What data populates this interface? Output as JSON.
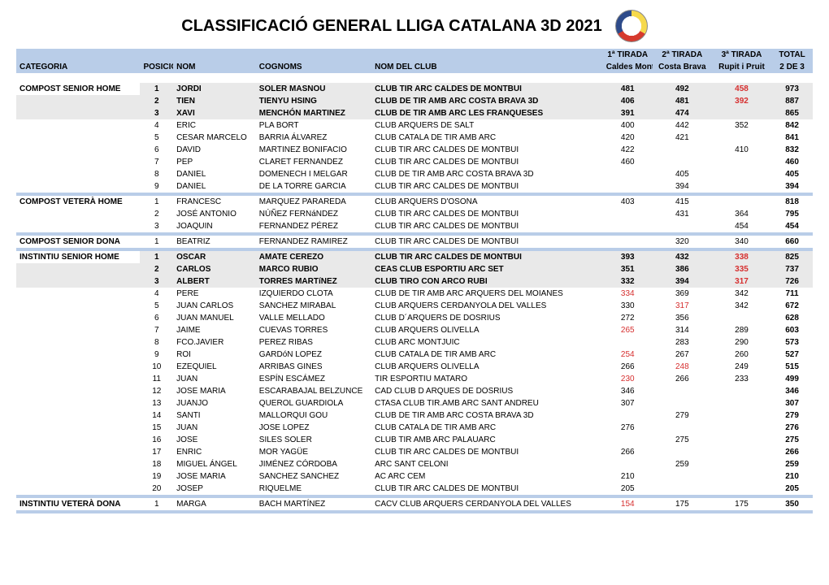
{
  "title": "CLASSIFICACIÓ GENERAL LLIGA CATALANA 3D 2021",
  "headers": {
    "tirada1": "1ª TIRADA",
    "tirada2": "2ª TIRADA",
    "tirada3": "3ª TIRADA",
    "total": "TOTAL",
    "categoria": "CATEGORIA",
    "posicio": "POSICIÓ",
    "nom": "NOM",
    "cognoms": "COGNOMS",
    "nomclub": "NOM DEL CLUB",
    "sub1": "Caldes Montbui",
    "sub2": "Costa Brava",
    "sub3": "Rupit i Pruit",
    "subtot": "2 DE 3"
  },
  "colors": {
    "blue_band": "#b9cde8",
    "gray_band": "#e9e9e9",
    "red": "#d62f2f"
  },
  "sections": [
    {
      "category": "COMPOST SENIOR HOME",
      "rows": [
        {
          "hl": "gray",
          "pos": 1,
          "nom": "JORDI",
          "cog": "SOLER MASNOU",
          "club": "CLUB TIR ARC CALDES DE MONTBUI",
          "t1": "481",
          "t2": "492",
          "t3": "458",
          "t3red": true,
          "tot": "973"
        },
        {
          "hl": "gray",
          "pos": 2,
          "nom": "TIEN",
          "cog": "TIENYU HSING",
          "club": "CLUB DE TIR AMB ARC COSTA BRAVA 3D",
          "t1": "406",
          "t2": "481",
          "t3": "392",
          "t3red": true,
          "tot": "887"
        },
        {
          "hl": "gray",
          "pos": 3,
          "nom": "XAVI",
          "cog": "MENCHÓN MARTINEZ",
          "club": "CLUB DE TIR AMB ARC LES FRANQUESES",
          "t1": "391",
          "t2": "474",
          "t3": "",
          "tot": "865"
        },
        {
          "pos": 4,
          "nom": "ERIC",
          "cog": "PLA BORT",
          "club": "CLUB ARQUERS DE SALT",
          "t1": "400",
          "t2": "442",
          "t3": "352",
          "tot": "842"
        },
        {
          "pos": 5,
          "nom": "CESAR MARCELO",
          "cog": "BARRIA ÁLVAREZ",
          "club": "CLUB CATALA DE TIR AMB ARC",
          "t1": "420",
          "t2": "421",
          "t3": "",
          "tot": "841"
        },
        {
          "pos": 6,
          "nom": "DAVID",
          "cog": "MARTINEZ BONIFACIO",
          "club": "CLUB TIR ARC CALDES DE MONTBUI",
          "t1": "422",
          "t2": "",
          "t3": "410",
          "tot": "832"
        },
        {
          "pos": 7,
          "nom": "PEP",
          "cog": "CLARET FERNANDEZ",
          "club": "CLUB TIR ARC CALDES DE MONTBUI",
          "t1": "460",
          "t2": "",
          "t3": "",
          "tot": "460"
        },
        {
          "pos": 8,
          "nom": "DANIEL",
          "cog": "DOMENECH I MELGAR",
          "club": "CLUB DE TIR AMB ARC COSTA BRAVA 3D",
          "t1": "",
          "t2": "405",
          "t3": "",
          "tot": "405"
        },
        {
          "pos": 9,
          "nom": "DANIEL",
          "cog": "DE LA TORRE GARCIA",
          "club": "CLUB TIR ARC CALDES DE MONTBUI",
          "t1": "",
          "t2": "394",
          "t3": "",
          "tot": "394"
        }
      ]
    },
    {
      "category": "COMPOST VETERÀ HOME",
      "rows": [
        {
          "pos": 1,
          "nom": "FRANCESC",
          "cog": "MARQUEZ PARAREDA",
          "club": "CLUB ARQUERS D'OSONA",
          "t1": "403",
          "t2": "415",
          "t3": "",
          "tot": "818"
        },
        {
          "pos": 2,
          "nom": "JOSÉ ANTONIO",
          "cog": "NÚÑEZ FERNáNDEZ",
          "club": "CLUB TIR ARC CALDES DE MONTBUI",
          "t1": "",
          "t2": "431",
          "t3": "364",
          "tot": "795"
        },
        {
          "pos": 3,
          "nom": "JOAQUIN",
          "cog": "FERNANDEZ PÉREZ",
          "club": "CLUB TIR ARC CALDES DE MONTBUI",
          "t1": "",
          "t2": "",
          "t3": "454",
          "tot": "454"
        }
      ]
    },
    {
      "category": "COMPOST SENIOR DONA",
      "rows": [
        {
          "pos": 1,
          "nom": "BEATRIZ",
          "cog": "FERNANDEZ RAMIREZ",
          "club": "CLUB TIR ARC CALDES DE MONTBUI",
          "t1": "",
          "t2": "320",
          "t3": "340",
          "tot": "660"
        }
      ]
    },
    {
      "category": "INSTINTIU SENIOR HOME",
      "rows": [
        {
          "hl": "gray",
          "pos": 1,
          "nom": "OSCAR",
          "cog": "AMATE CEREZO",
          "club": "CLUB TIR ARC CALDES DE MONTBUI",
          "t1": "393",
          "t2": "432",
          "t3": "338",
          "t3red": true,
          "tot": "825"
        },
        {
          "hl": "gray",
          "pos": 2,
          "nom": "CARLOS",
          "cog": "MARCO RUBIO",
          "club": "CEAS CLUB ESPORTIU ARC SET",
          "t1": "351",
          "t2": "386",
          "t3": "335",
          "t3red": true,
          "tot": "737"
        },
        {
          "hl": "gray",
          "pos": 3,
          "nom": "ALBERT",
          "cog": "TORRES MARTíNEZ",
          "club": "CLUB TIRO CON ARCO RUBI",
          "t1": "332",
          "t2": "394",
          "t3": "317",
          "t3red": true,
          "tot": "726"
        },
        {
          "pos": 4,
          "nom": "PERE",
          "cog": "IZQUIERDO CLOTA",
          "club": "CLUB DE TIR AMB ARC ARQUERS DEL MOIANES",
          "t1": "334",
          "t1red": true,
          "t2": "369",
          "t3": "342",
          "tot": "711"
        },
        {
          "pos": 5,
          "nom": "JUAN CARLOS",
          "cog": "SANCHEZ MIRABAL",
          "club": "CLUB ARQUERS CERDANYOLA DEL VALLES",
          "t1": "330",
          "t2": "317",
          "t2red": true,
          "t3": "342",
          "tot": "672"
        },
        {
          "pos": 6,
          "nom": "JUAN MANUEL",
          "cog": "VALLE MELLADO",
          "club": "CLUB D´ARQUERS DE DOSRIUS",
          "t1": "272",
          "t2": "356",
          "t3": "",
          "tot": "628"
        },
        {
          "pos": 7,
          "nom": "JAIME",
          "cog": "CUEVAS TORRES",
          "club": "CLUB ARQUERS OLIVELLA",
          "t1": "265",
          "t1red": true,
          "t2": "314",
          "t3": "289",
          "tot": "603"
        },
        {
          "pos": 8,
          "nom": "FCO.JAVIER",
          "cog": "PEREZ RIBAS",
          "club": "CLUB ARC MONTJUIC",
          "t1": "",
          "t2": "283",
          "t3": "290",
          "tot": "573"
        },
        {
          "pos": 9,
          "nom": "ROI",
          "cog": "GARDóN LOPEZ",
          "club": "CLUB CATALA DE TIR AMB ARC",
          "t1": "254",
          "t1red": true,
          "t2": "267",
          "t3": "260",
          "tot": "527"
        },
        {
          "pos": 10,
          "nom": "EZEQUIEL",
          "cog": "ARRIBAS GINES",
          "club": "CLUB ARQUERS OLIVELLA",
          "t1": "266",
          "t2": "248",
          "t2red": true,
          "t3": "249",
          "tot": "515"
        },
        {
          "pos": 11,
          "nom": "JUAN",
          "cog": "ESPÍN ESCÁMEZ",
          "club": "TIR ESPORTIU MATARO",
          "t1": "230",
          "t1red": true,
          "t2": "266",
          "t3": "233",
          "tot": "499"
        },
        {
          "pos": 12,
          "nom": "JOSE MARIA",
          "cog": "ESCARABAJAL BELZUNCE",
          "club": "CAD CLUB D ARQUES DE DOSRIUS",
          "t1": "346",
          "t2": "",
          "t3": "",
          "tot": "346"
        },
        {
          "pos": 13,
          "nom": "JUANJO",
          "cog": "QUEROL GUARDIOLA",
          "club": "CTASA CLUB TIR.AMB ARC SANT ANDREU",
          "t1": "307",
          "t2": "",
          "t3": "",
          "tot": "307"
        },
        {
          "pos": 14,
          "nom": "SANTI",
          "cog": "MALLORQUI GOU",
          "club": "CLUB DE TIR AMB ARC COSTA BRAVA 3D",
          "t1": "",
          "t2": "279",
          "t3": "",
          "tot": "279"
        },
        {
          "pos": 15,
          "nom": "JUAN",
          "cog": "JOSE LOPEZ",
          "club": "CLUB CATALA DE TIR AMB ARC",
          "t1": "276",
          "t2": "",
          "t3": "",
          "tot": "276"
        },
        {
          "pos": 16,
          "nom": "JOSE",
          "cog": "SILES SOLER",
          "club": "CLUB TIR AMB ARC PALAUARC",
          "t1": "",
          "t2": "275",
          "t3": "",
          "tot": "275"
        },
        {
          "pos": 17,
          "nom": "ENRIC",
          "cog": "MOR YAGÜE",
          "club": "CLUB TIR ARC CALDES DE MONTBUI",
          "t1": "266",
          "t2": "",
          "t3": "",
          "tot": "266"
        },
        {
          "pos": 18,
          "nom": "MIGUEL ÁNGEL",
          "cog": "JIMÉNEZ CÓRDOBA",
          "club": "ARC SANT CELONI",
          "t1": "",
          "t2": "259",
          "t3": "",
          "tot": "259"
        },
        {
          "pos": 19,
          "nom": "JOSE MARIA",
          "cog": "SANCHEZ SANCHEZ",
          "club": "AC ARC CEM",
          "t1": "210",
          "t2": "",
          "t3": "",
          "tot": "210"
        },
        {
          "pos": 20,
          "nom": "JOSEP",
          "cog": "RIQUELME",
          "club": "CLUB TIR ARC CALDES DE MONTBUI",
          "t1": "205",
          "t2": "",
          "t3": "",
          "tot": "205"
        }
      ]
    },
    {
      "category": "INSTINTIU VETERÀ DONA",
      "rows": [
        {
          "pos": 1,
          "nom": "MARGA",
          "cog": "BACH MARTÍNEZ",
          "club": "CACV CLUB ARQUERS CERDANYOLA DEL VALLES",
          "t1": "154",
          "t1red": true,
          "t2": "175",
          "t3": "175",
          "tot": "350"
        }
      ]
    }
  ]
}
